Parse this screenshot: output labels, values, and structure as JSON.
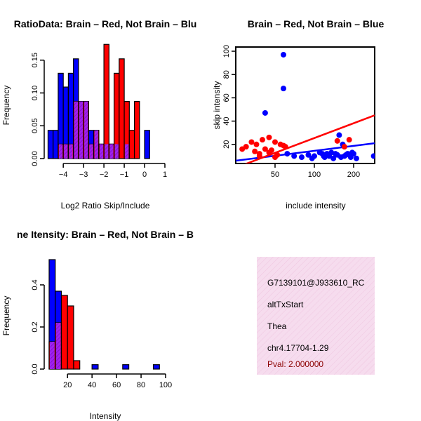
{
  "colors": {
    "blue": "#0000ff",
    "red": "#ff0000",
    "purple": "#a020f0",
    "panel_bg": "#f4d7ea",
    "pval": "#8b0000"
  },
  "chart_data": [
    {
      "type": "bar",
      "title": "RatioData: Brain – Red, Not Brain – Blu",
      "xlabel": "Log2 Ratio Skip/Include",
      "ylabel": "Frequency",
      "xlim": [
        -4.8,
        1.0
      ],
      "ylim": [
        0,
        0.17
      ],
      "xticks": [
        -4,
        -3,
        -2,
        -1,
        0,
        1
      ],
      "yticks": [
        0.0,
        0.05,
        0.1,
        0.15
      ],
      "xtick_labels": [
        "−4",
        "−3",
        "−2",
        "−1",
        "0",
        "1"
      ],
      "ytick_labels": [
        "0.00",
        "0.05",
        "0.10",
        "0.15"
      ],
      "bin_start": -4.75,
      "bin_width": 0.25,
      "series": [
        {
          "name": "Not Brain",
          "color": "blue",
          "values": [
            0.043,
            0.043,
            0.13,
            0.109,
            0.13,
            0.152,
            0.087,
            0.087,
            0.043,
            0.043,
            0.022,
            0.022,
            0.022,
            0.022,
            0.0,
            0.022,
            0.0,
            0.0,
            0.0,
            0.043
          ]
        },
        {
          "name": "Brain",
          "color": "red",
          "values": [
            0,
            0,
            0.022,
            0.022,
            0.022,
            0.087,
            0.087,
            0.087,
            0.022,
            0.043,
            0.022,
            0.174,
            0.022,
            0.13,
            0.152,
            0.087,
            0.043,
            0.087,
            0,
            0
          ]
        }
      ]
    },
    {
      "type": "scatter",
      "title": "Brain – Red, Not Brain – Blue",
      "xlabel": "include intensity",
      "ylabel": "skip intensity",
      "xlim": [
        25,
        290
      ],
      "ylim": [
        0,
        100
      ],
      "xticks": [
        50,
        100,
        200
      ],
      "yticks": [
        20,
        40,
        60,
        80,
        100
      ],
      "xtick_labels": [
        "50",
        "100",
        "200"
      ],
      "ytick_labels": [
        "20",
        "40",
        "60",
        "80",
        "100"
      ],
      "series": [
        {
          "name": "Not Brain",
          "color": "blue",
          "x": [
            58,
            58,
            42,
            62,
            70,
            90,
            96,
            110,
            118,
            125,
            130,
            140,
            150,
            160,
            170,
            180,
            190,
            210,
            285,
            155,
            165,
            80,
            100,
            120,
            135,
            145,
            175,
            200,
            195,
            115
          ],
          "y": [
            97,
            68,
            47,
            12,
            10,
            11,
            8,
            13,
            10,
            12,
            10,
            8,
            11,
            9,
            10,
            12,
            9,
            8,
            10,
            28,
            20,
            9,
            10,
            9,
            13,
            12,
            11,
            12,
            13,
            12
          ],
          "trend": [
            [
              25,
              6
            ],
            [
              290,
              21
            ]
          ]
        },
        {
          "name": "Brain",
          "color": "red",
          "x": [
            28,
            30,
            33,
            35,
            36,
            38,
            40,
            42,
            45,
            47,
            50,
            52,
            55,
            58,
            60,
            45,
            38,
            50,
            150,
            170,
            185
          ],
          "y": [
            16,
            18,
            22,
            14,
            20,
            12,
            24,
            16,
            26,
            15,
            22,
            11,
            20,
            19,
            18,
            13,
            10,
            9,
            23,
            18,
            24
          ],
          "trend": [
            [
              25,
              0
            ],
            [
              290,
              45
            ]
          ]
        }
      ]
    },
    {
      "type": "bar",
      "title": "ne Itensity: Brain – Red, Not Brain – B",
      "xlabel": "Intensity",
      "ylabel": "Frequency",
      "xlim": [
        5,
        100
      ],
      "ylim": [
        0,
        0.53
      ],
      "xticks": [
        20,
        40,
        60,
        80,
        100
      ],
      "yticks": [
        0.0,
        0.2,
        0.4
      ],
      "xtick_labels": [
        "20",
        "40",
        "60",
        "80",
        "100"
      ],
      "ytick_labels": [
        "0.0",
        "0.2",
        "0.4"
      ],
      "bin_start": 5,
      "bin_width": 5,
      "series": [
        {
          "name": "Not Brain",
          "color": "blue",
          "values": [
            0.52,
            0.37,
            0.0,
            0.0,
            0.0,
            0.0,
            0.0,
            0.021,
            0.0,
            0.0,
            0.0,
            0.0,
            0.021,
            0.0,
            0.0,
            0.0,
            0.0,
            0.021
          ]
        },
        {
          "name": "Brain",
          "color": "red",
          "values": [
            0.13,
            0.22,
            0.35,
            0.3,
            0.04
          ]
        }
      ]
    }
  ],
  "info": {
    "id": "G7139101@J933610_RC",
    "event_type": "altTxStart",
    "gene": "Thea",
    "location": "chr4.17704-1.29",
    "pval": "Pval: 2.000000"
  }
}
